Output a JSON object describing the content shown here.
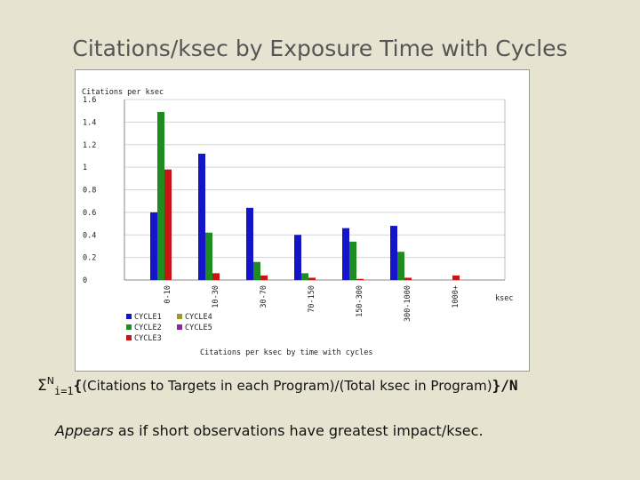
{
  "slide": {
    "title": "Citations/ksec by Exposure Time with Cycles",
    "formula": {
      "sigma": "Σ",
      "superscript": "N",
      "subscript": "i=1",
      "open_brace": "{",
      "body": "(Citations to Targets in each Program)/(Total ksec in Program)",
      "close": "}/N"
    },
    "note": {
      "emphasis": "Appears",
      "rest": " as if short observations have greatest impact/ksec."
    }
  },
  "chart_data": {
    "type": "bar",
    "title": "Citations per ksec by time with cycles",
    "ylabel": "Citations per ksec",
    "xlabel": "ksec",
    "ylim": [
      0,
      1.6
    ],
    "yticks": [
      0,
      0.2,
      0.4,
      0.6,
      0.8,
      1,
      1.2,
      1.4,
      1.6
    ],
    "categories": [
      "0-10",
      "10-30",
      "30-70",
      "70-150",
      "150-300",
      "300-1000",
      "1000+"
    ],
    "series": [
      {
        "name": "CYCLE1",
        "color": "#1414c8",
        "values": [
          0.6,
          1.12,
          0.64,
          0.4,
          0.46,
          0.48,
          0
        ]
      },
      {
        "name": "CYCLE2",
        "color": "#1f8c1f",
        "values": [
          1.49,
          0.42,
          0.16,
          0.06,
          0.34,
          0.25,
          0
        ]
      },
      {
        "name": "CYCLE3",
        "color": "#c81414",
        "values": [
          0.98,
          0.06,
          0.04,
          0.02,
          0.01,
          0.02,
          0.04
        ]
      },
      {
        "name": "CYCLE4",
        "color": "#9a9a2a",
        "values": [
          0,
          0,
          0,
          0,
          0,
          0,
          0
        ]
      },
      {
        "name": "CYCLE5",
        "color": "#8a2a9a",
        "values": [
          0,
          0,
          0,
          0,
          0,
          0,
          0
        ]
      }
    ],
    "grid": true,
    "legend_position": "bottom-left"
  }
}
